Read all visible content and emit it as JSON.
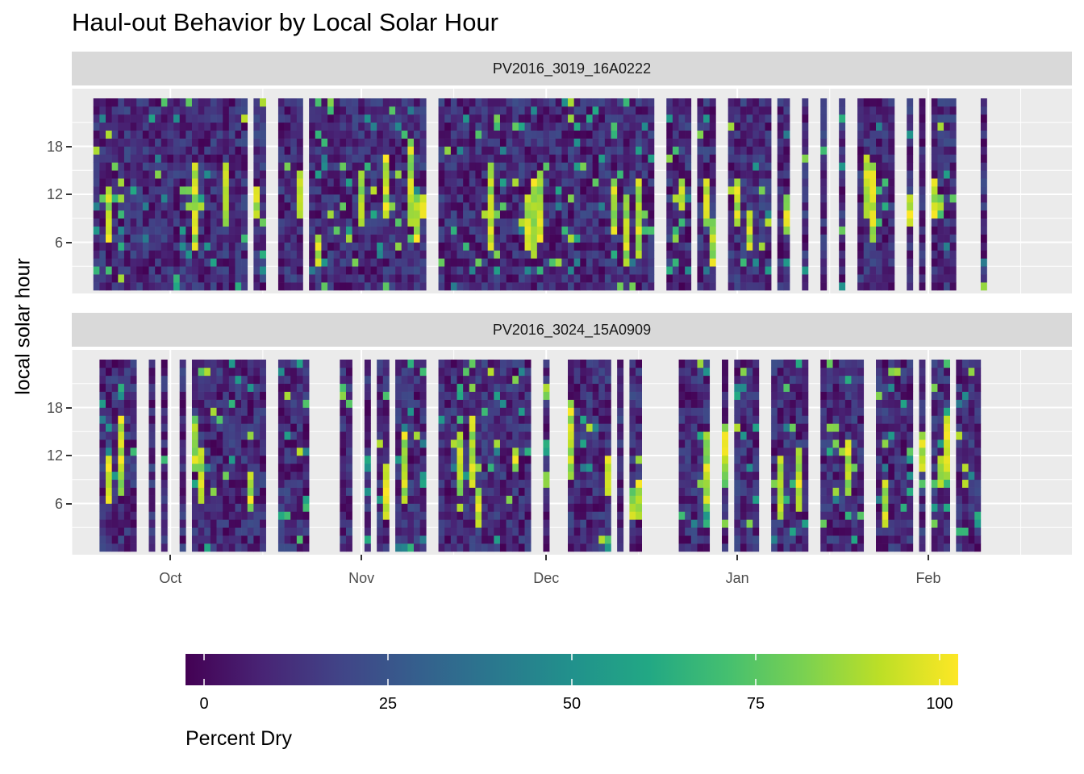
{
  "chart_data": {
    "type": "heatmap",
    "title": "Haul-out Behavior by Local Solar Hour",
    "xlabel": "",
    "ylabel": "local solar hour",
    "x_ticks": [
      "Oct",
      "Nov",
      "Dec",
      "Jan",
      "Feb"
    ],
    "y_ticks": [
      "6",
      "12",
      "18"
    ],
    "y_range": [
      0,
      23
    ],
    "x_range": [
      "2016-09-19",
      "2017-02-12"
    ],
    "grid": true,
    "legend": {
      "title": "Percent Dry",
      "position": "bottom",
      "scale": "viridis",
      "range": [
        0,
        100
      ],
      "ticks": [
        "0",
        "25",
        "50",
        "75",
        "100"
      ]
    },
    "panels": [
      {
        "name": "PV2016_3019_16A0222",
        "start_date": "2016-09-19",
        "end_date": "2017-02-10",
        "missing_days": [
          "2016-10-14",
          "2016-10-17",
          "2016-10-18",
          "2016-10-23",
          "2016-11-12",
          "2016-11-13",
          "2016-12-19",
          "2016-12-20",
          "2016-12-25",
          "2016-12-29",
          "2016-12-30",
          "2017-01-07",
          "2017-01-10",
          "2017-01-11",
          "2017-01-13",
          "2017-01-14",
          "2017-01-16",
          "2017-01-17",
          "2017-01-19",
          "2017-01-20",
          "2017-01-27",
          "2017-01-28",
          "2017-01-30",
          "2017-02-01",
          "2017-02-06",
          "2017-02-07",
          "2017-02-08",
          "2017-02-09"
        ]
      },
      {
        "name": "PV2016_3024_15A0909",
        "start_date": "2016-09-20",
        "end_date": "2017-02-09",
        "missing_days": [
          "2016-09-26",
          "2016-09-27",
          "2016-09-29",
          "2016-10-01",
          "2016-10-02",
          "2016-10-04",
          "2016-10-17",
          "2016-10-18",
          "2016-10-24",
          "2016-10-25",
          "2016-10-26",
          "2016-10-27",
          "2016-10-28",
          "2016-10-31",
          "2016-11-01",
          "2016-11-03",
          "2016-11-06",
          "2016-11-12",
          "2016-11-13",
          "2016-11-29",
          "2016-11-30",
          "2016-12-02",
          "2016-12-03",
          "2016-12-04",
          "2016-12-12",
          "2016-12-14",
          "2016-12-17",
          "2016-12-18",
          "2016-12-19",
          "2016-12-20",
          "2016-12-21",
          "2016-12-22",
          "2016-12-28",
          "2016-12-29",
          "2016-12-31",
          "2017-01-05",
          "2017-01-06",
          "2017-01-13",
          "2017-01-14",
          "2017-01-22",
          "2017-01-23",
          "2017-01-30",
          "2017-02-01",
          "2017-02-05"
        ]
      }
    ]
  }
}
